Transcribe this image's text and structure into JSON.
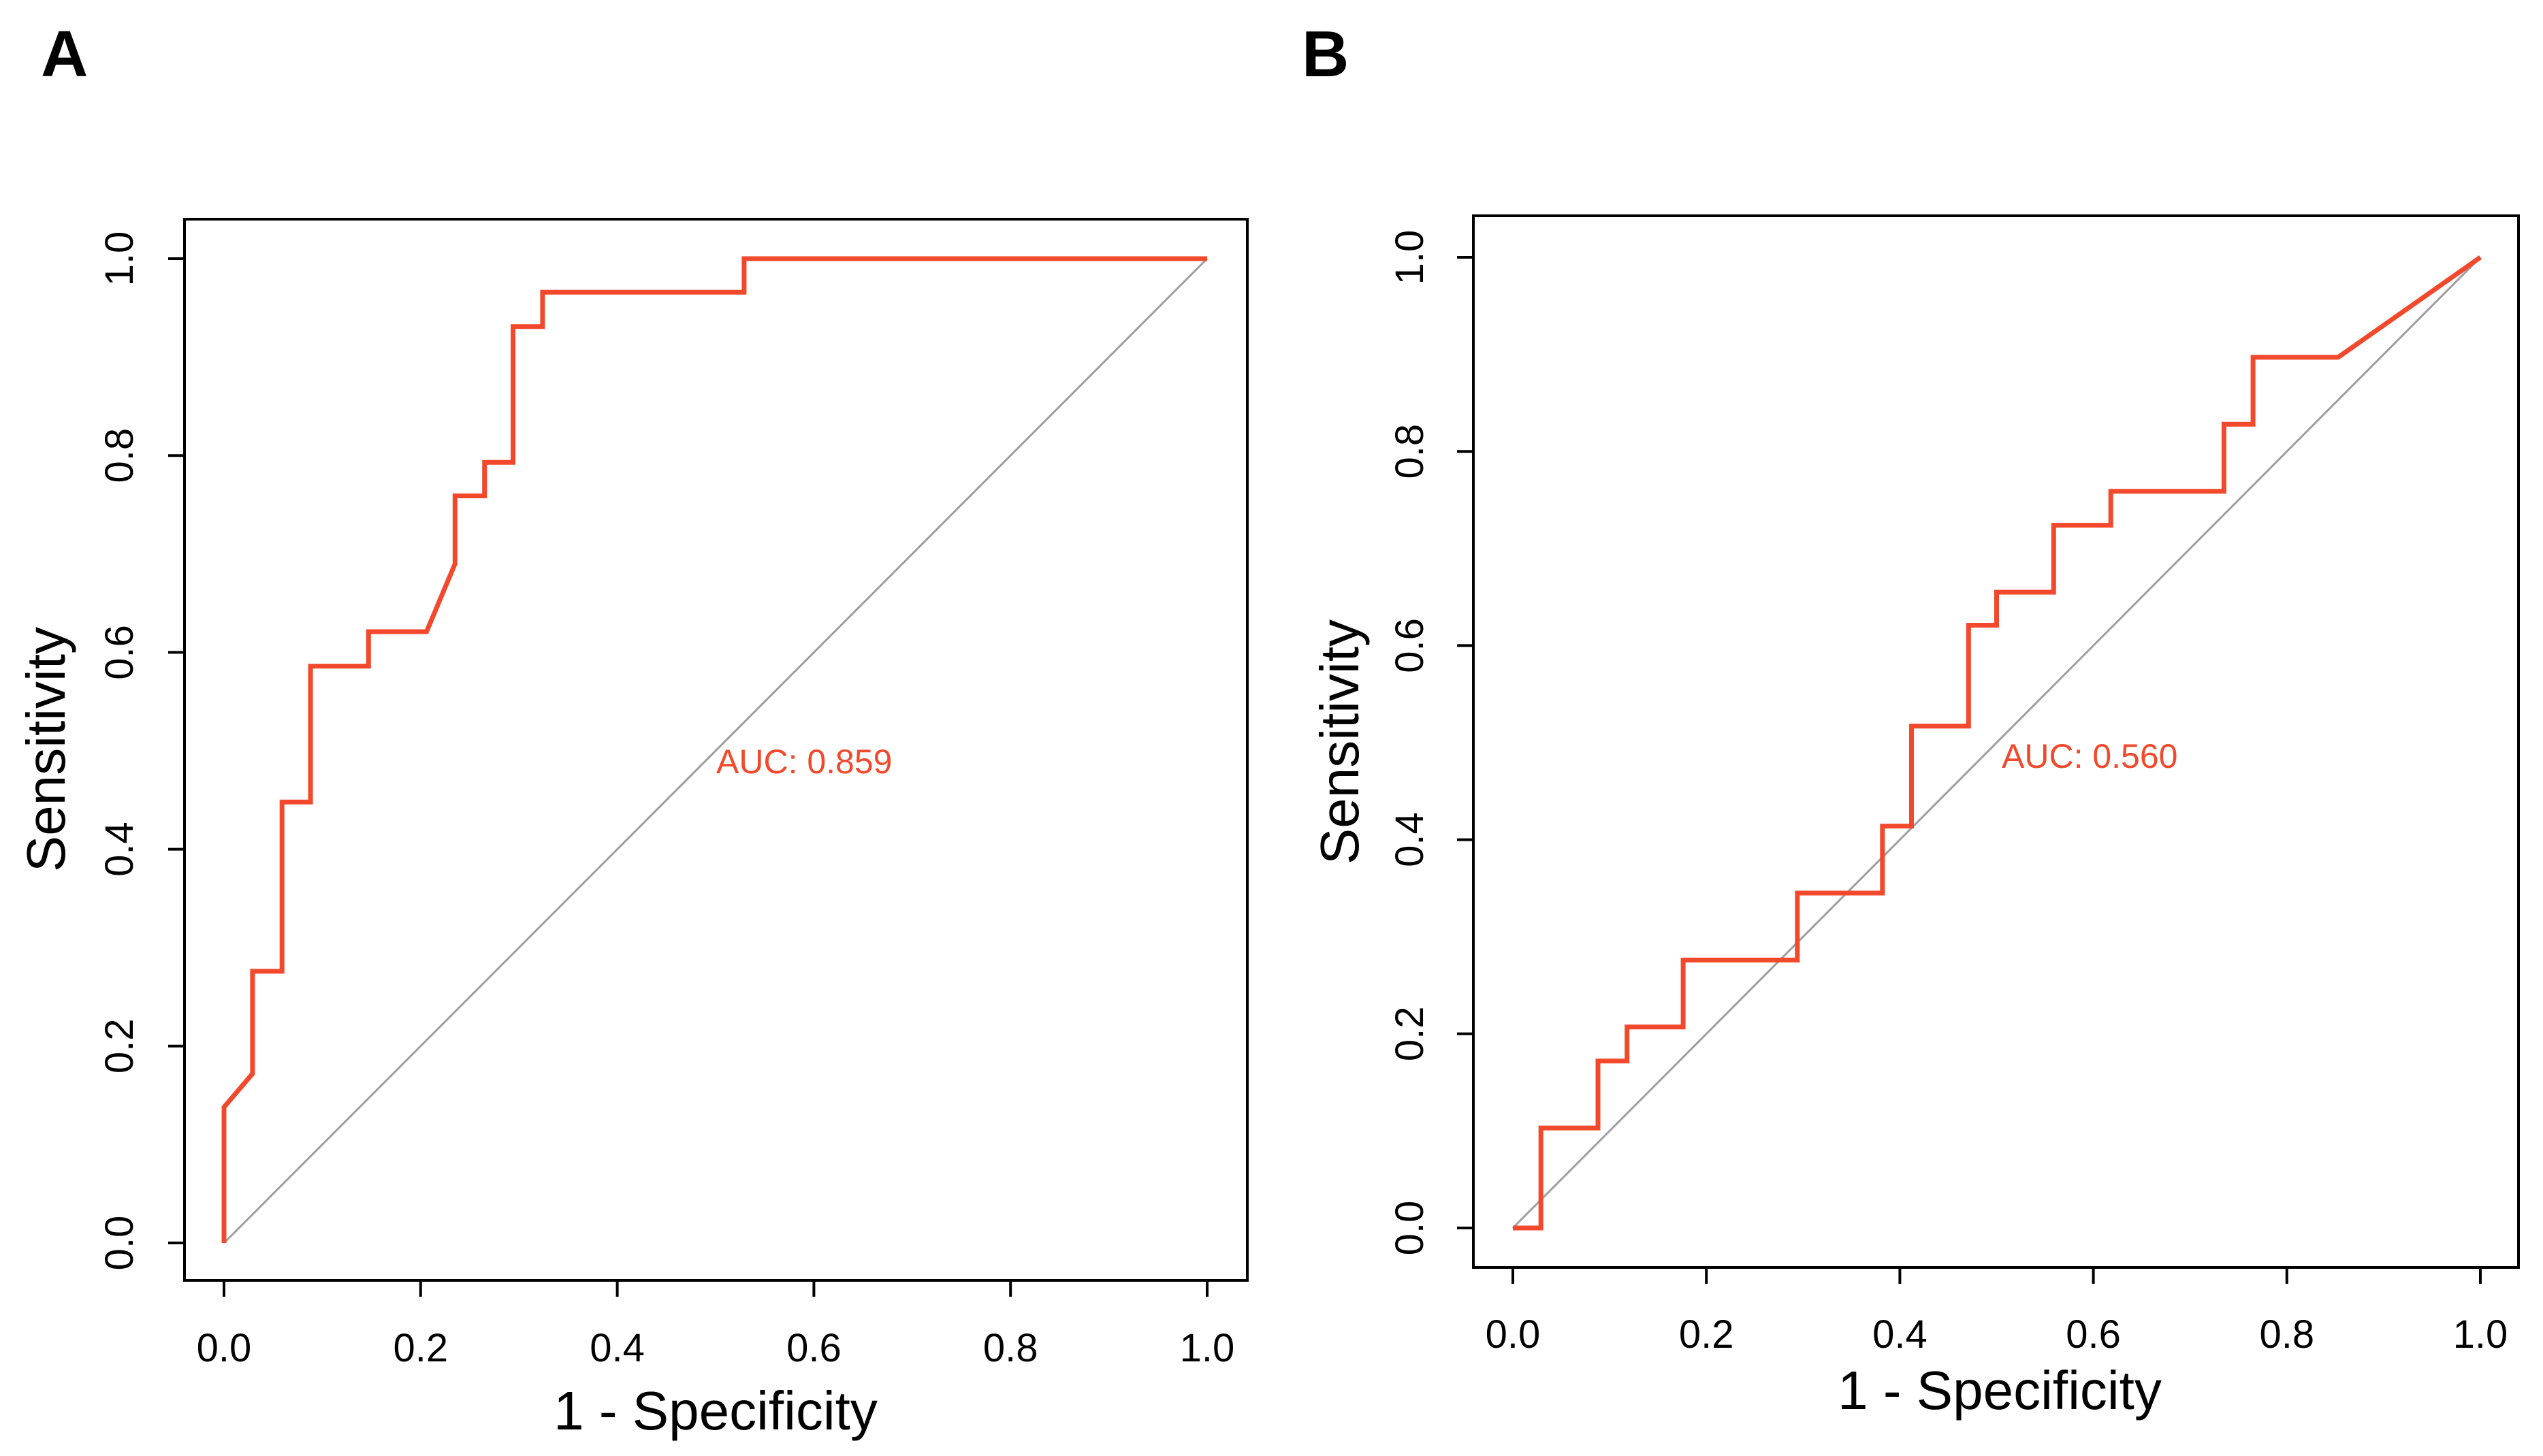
{
  "colors": {
    "roc": "#f2492d",
    "diagonal": "#9e9e9e",
    "axis": "#000000"
  },
  "chart_data": [
    {
      "type": "line",
      "panel": "A",
      "xlabel": "1 -  Specificity",
      "ylabel": "Sensitivity",
      "xlim": [
        0.0,
        1.0
      ],
      "ylim": [
        0.0,
        1.0
      ],
      "xticks": [
        "0.0",
        "0.2",
        "0.4",
        "0.6",
        "0.8",
        "1.0"
      ],
      "yticks": [
        "0.0",
        "0.2",
        "0.4",
        "0.6",
        "0.8",
        "1.0"
      ],
      "grid": false,
      "annotation": "AUC: 0.859",
      "series": [
        {
          "name": "ROC",
          "x": [
            0.0,
            0.0,
            0.029,
            0.029,
            0.059,
            0.059,
            0.088,
            0.088,
            0.147,
            0.147,
            0.206,
            0.235,
            0.235,
            0.265,
            0.265,
            0.294,
            0.294,
            0.324,
            0.324,
            0.529,
            0.529,
            1.0
          ],
          "y": [
            0.0,
            0.138,
            0.172,
            0.276,
            0.276,
            0.448,
            0.448,
            0.586,
            0.586,
            0.621,
            0.621,
            0.69,
            0.759,
            0.759,
            0.793,
            0.793,
            0.931,
            0.931,
            0.966,
            0.966,
            1.0,
            1.0
          ]
        },
        {
          "name": "reference",
          "x": [
            0,
            1
          ],
          "y": [
            0,
            1
          ]
        }
      ]
    },
    {
      "type": "line",
      "panel": "B",
      "xlabel": "1 -  Specificity",
      "ylabel": "Sensitivity",
      "xlim": [
        0.0,
        1.0
      ],
      "ylim": [
        0.0,
        1.0
      ],
      "xticks": [
        "0.0",
        "0.2",
        "0.4",
        "0.6",
        "0.8",
        "1.0"
      ],
      "yticks": [
        "0.0",
        "0.2",
        "0.4",
        "0.6",
        "0.8",
        "1.0"
      ],
      "grid": false,
      "annotation": "AUC: 0.560",
      "series": [
        {
          "name": "ROC",
          "x": [
            0.0,
            0.029,
            0.029,
            0.088,
            0.088,
            0.118,
            0.118,
            0.176,
            0.176,
            0.294,
            0.294,
            0.382,
            0.382,
            0.412,
            0.412,
            0.471,
            0.471,
            0.5,
            0.5,
            0.559,
            0.559,
            0.618,
            0.618,
            0.735,
            0.735,
            0.765,
            0.765,
            0.853,
            1.0
          ],
          "y": [
            0.0,
            0.0,
            0.103,
            0.103,
            0.172,
            0.172,
            0.207,
            0.207,
            0.276,
            0.276,
            0.345,
            0.345,
            0.414,
            0.414,
            0.517,
            0.517,
            0.621,
            0.621,
            0.655,
            0.655,
            0.724,
            0.724,
            0.759,
            0.759,
            0.828,
            0.828,
            0.897,
            0.897,
            1.0
          ]
        },
        {
          "name": "reference",
          "x": [
            0,
            1
          ],
          "y": [
            0,
            1
          ]
        }
      ]
    }
  ]
}
